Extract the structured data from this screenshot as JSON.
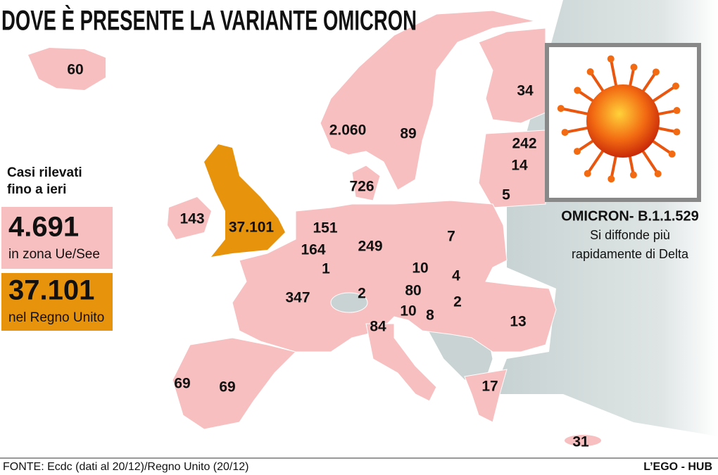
{
  "header": {
    "title": "DOVE È PRESENTE LA VARIANTE OMICRON"
  },
  "summary": {
    "label": [
      "Casi rilevati",
      "fino a ieri"
    ]
  },
  "eu": {
    "value": "4.691",
    "label": "in zona Ue/See"
  },
  "uk": {
    "value": "37.101",
    "label": "nel Regno Unito"
  },
  "virus": {
    "title": "OMICRON- B.1.1.529",
    "caption": [
      "Si diffonde più",
      "rapidamente di Delta"
    ]
  },
  "map_labels": [
    "60",
    "2.060",
    "89",
    "34",
    "242",
    "14",
    "726",
    "5",
    "143",
    "37.101",
    "151",
    "164",
    "1",
    "249",
    "7",
    "10",
    "4",
    "347",
    "2",
    "80",
    "2",
    "10",
    "8",
    "84",
    "13",
    "69",
    "69",
    "17",
    "31"
  ],
  "footer": {
    "source": "FONTE: Ecdc (dati al 20/12)/Regno Unito (20/12)",
    "brand": "L’EGO - HUB"
  }
}
